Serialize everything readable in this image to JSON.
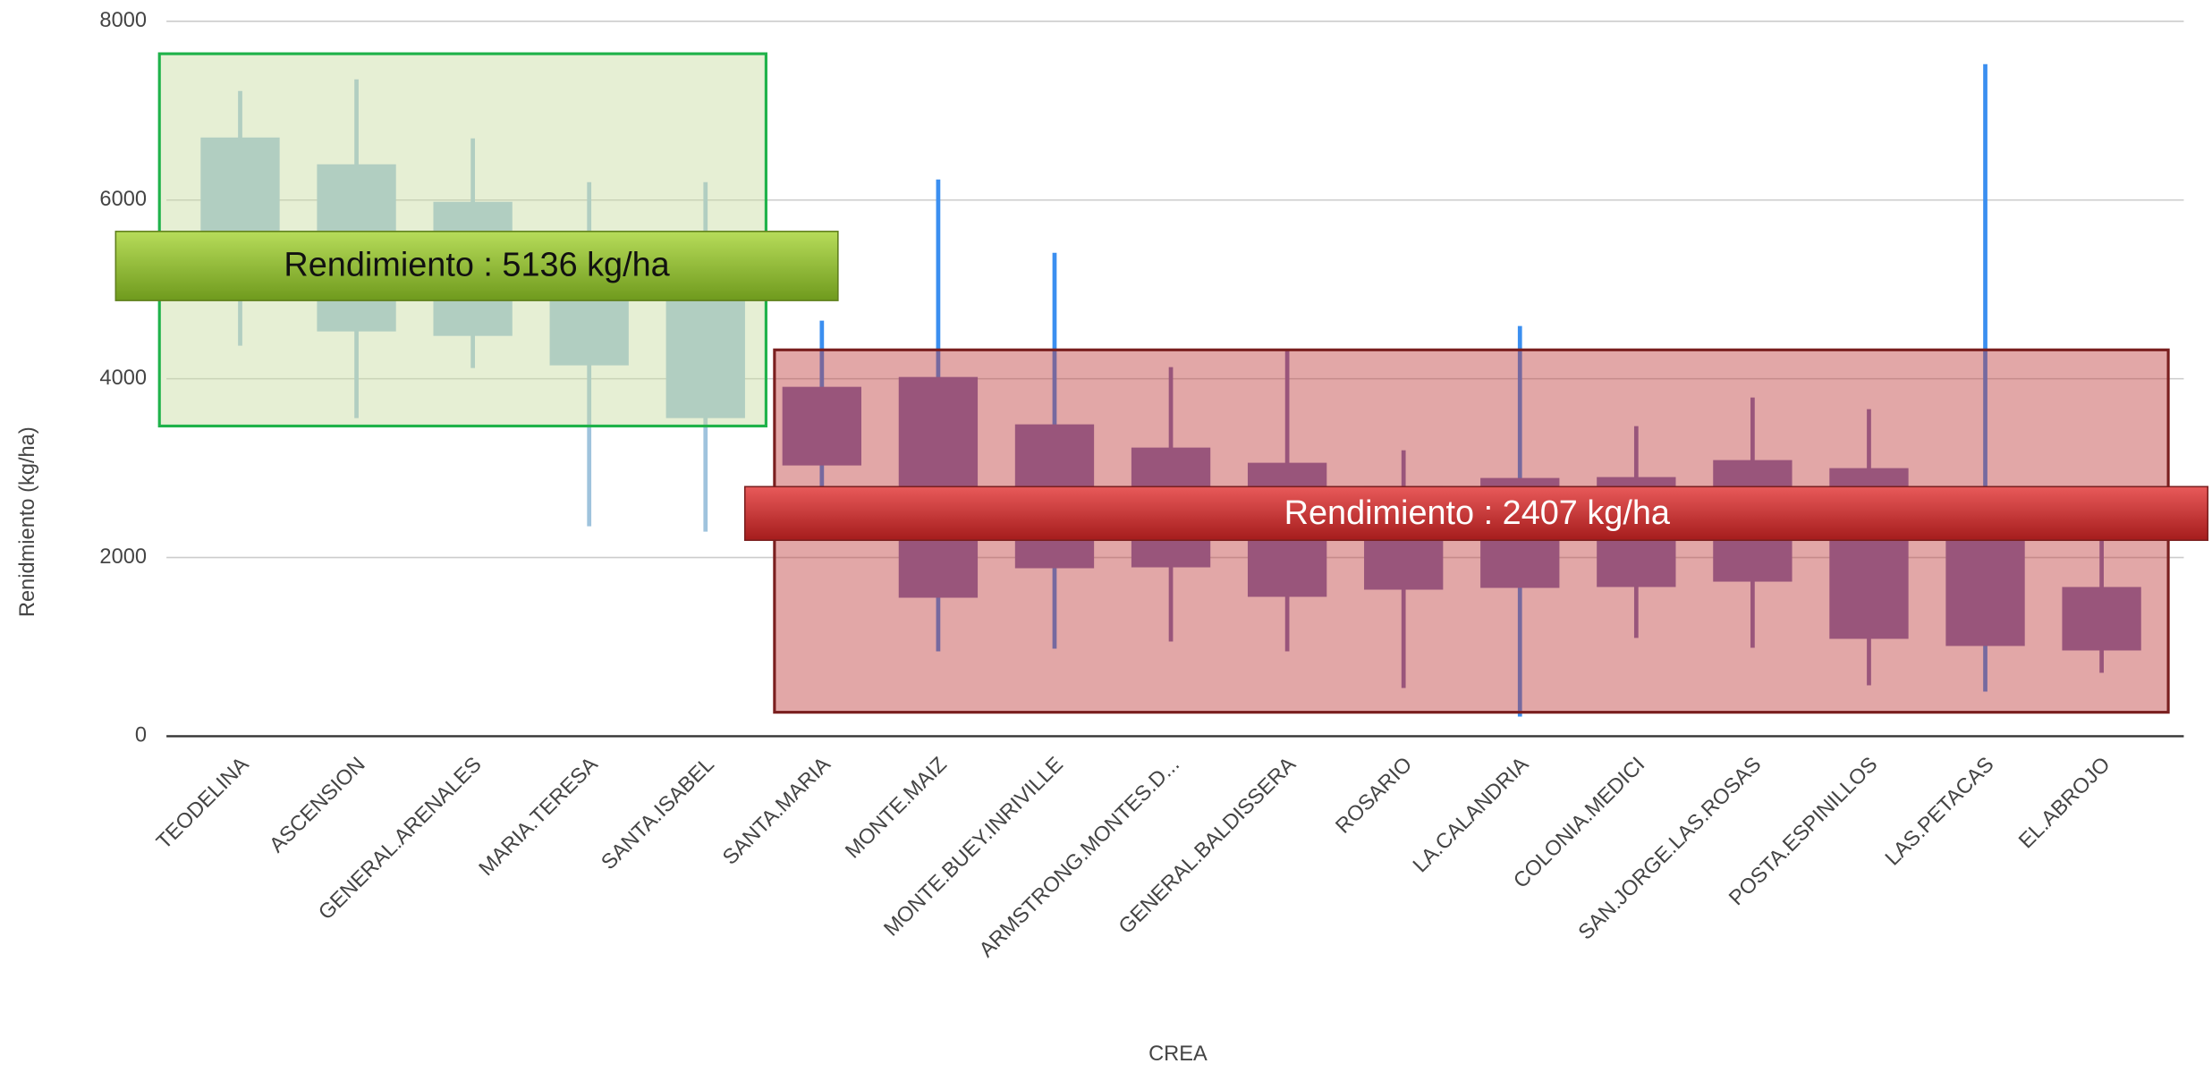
{
  "chart_data": {
    "type": "candlestick",
    "ylabel": "Renidmiento (kg/ha)",
    "xlabel": "CREA",
    "categories": [
      "TEODELINA",
      "ASCENSION",
      "GENERAL.ARENALES",
      "MARIA.TERESA",
      "SANTA.ISABEL",
      "SANTA.MARIA",
      "MONTE.MAIZ",
      "MONTE.BUEY.INRIVILLE",
      "ARMSTRONG.MONTES.D...",
      "GENERAL.BALDISSERA",
      "ROSARIO",
      "LA.CALANDRIA",
      "COLONIA.MEDICI",
      "SAN.JORGE.LAS.ROSAS",
      "POSTA.ESPINILLOS",
      "LAS.PETACAS",
      "EL.ABROJO"
    ],
    "low": [
      4370,
      3560,
      4120,
      2350,
      2290,
      2800,
      950,
      980,
      1060,
      950,
      540,
      220,
      1100,
      990,
      570,
      500,
      710
    ],
    "box_low": [
      4900,
      4530,
      4480,
      4150,
      3560,
      3030,
      1550,
      1880,
      1890,
      1560,
      1640,
      1660,
      1670,
      1730,
      1090,
      1010,
      960
    ],
    "box_high": [
      6700,
      6400,
      5980,
      5630,
      5630,
      3910,
      4020,
      3490,
      3230,
      3060,
      2800,
      2890,
      2900,
      3090,
      3000,
      2600,
      1670
    ],
    "high": [
      7220,
      7350,
      6690,
      6200,
      6200,
      4650,
      6230,
      5410,
      4130,
      4320,
      3200,
      4590,
      3470,
      3790,
      3660,
      7520,
      2200
    ],
    "colors": [
      "#9fc3dd",
      "#9fc3dd",
      "#9fc3dd",
      "#9fc3dd",
      "#9fc3dd",
      "#7b6bb0",
      "#7b6bb0",
      "#7b6bb0",
      "#7b6bb0",
      "#7b6bb0",
      "#7b6bb0",
      "#7b6bb0",
      "#7b6bb0",
      "#7b6bb0",
      "#7b6bb0",
      "#7b6bb0",
      "#7b6bb0"
    ],
    "whisker_colors": [
      "#9fc3dd",
      "#9fc3dd",
      "#9fc3dd",
      "#9fc3dd",
      "#9fc3dd",
      "#3b8ff0",
      "#3b8ff0",
      "#3b8ff0",
      "#7b6bb0",
      "#7b6bb0",
      "#7b6bb0",
      "#3b8ff0",
      "#7b6bb0",
      "#7b6bb0",
      "#7b6bb0",
      "#3b8ff0",
      "#7b6bb0"
    ],
    "ylim": [
      0,
      8000
    ],
    "yticks": [
      0,
      2000,
      4000,
      6000,
      8000
    ],
    "grid": true,
    "annotations": [
      {
        "text": "Rendimiento : 5136 kg/ha"
      },
      {
        "text": "Rendimiento : 2407 kg/ha"
      }
    ]
  }
}
